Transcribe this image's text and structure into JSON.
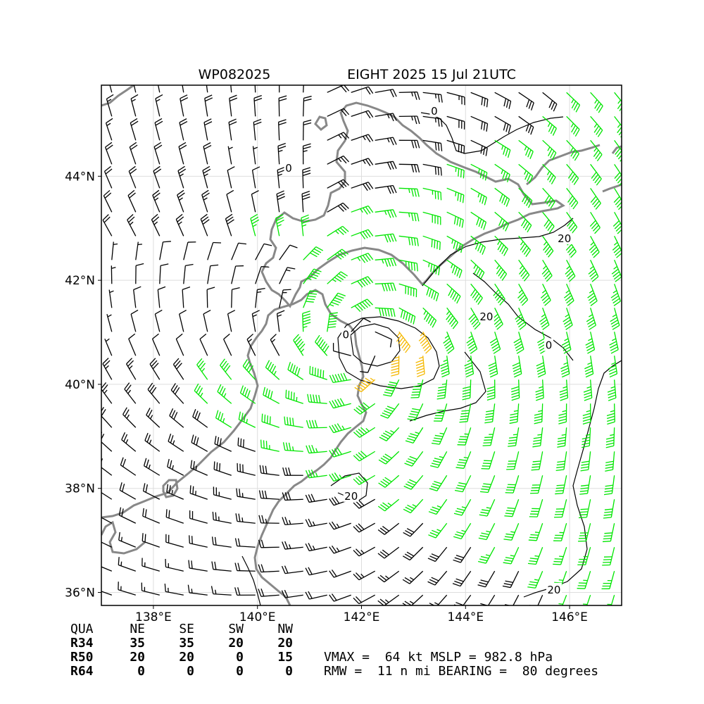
{
  "chart_data": {
    "type": "wind barb map",
    "title_left": "WP082025",
    "title_right": "EIGHT 2025 15 Jul 21UTC",
    "lon_range": [
      137.0,
      147.0
    ],
    "lat_range": [
      35.75,
      45.75
    ],
    "x_ticks": [
      {
        "value": 138,
        "label": "138°E"
      },
      {
        "value": 140,
        "label": "140°E"
      },
      {
        "value": 142,
        "label": "142°E"
      },
      {
        "value": 144,
        "label": "144°E"
      },
      {
        "value": 146,
        "label": "146°E"
      }
    ],
    "y_ticks": [
      {
        "value": 36,
        "label": "36°N"
      },
      {
        "value": 38,
        "label": "38°N"
      },
      {
        "value": 40,
        "label": "40°N"
      },
      {
        "value": 42,
        "label": "42°N"
      },
      {
        "value": 44,
        "label": "44°N"
      }
    ],
    "grid": true,
    "storm_center": {
      "lon": 142.0,
      "lat": 40.75
    },
    "contour_labels": [
      {
        "text": "0",
        "lon": 143.4,
        "lat": 45.25
      },
      {
        "text": "0",
        "lon": 140.6,
        "lat": 44.15
      },
      {
        "text": "20",
        "lon": 145.9,
        "lat": 42.8
      },
      {
        "text": "20",
        "lon": 144.4,
        "lat": 41.3
      },
      {
        "text": "0",
        "lon": 145.6,
        "lat": 40.75
      },
      {
        "text": "0",
        "lon": 141.7,
        "lat": 40.95
      },
      {
        "text": "20",
        "lon": 141.8,
        "lat": 37.85
      },
      {
        "text": "20",
        "lon": 145.7,
        "lat": 36.05
      }
    ],
    "wind_colors": {
      "below_34kt": "#000000",
      "34_to_63kt": "#00e600",
      "64kt_plus": "#f5b800"
    },
    "coastline_color": "#888888",
    "wind_radii_table": {
      "header": [
        "QUA",
        "NE",
        "SE",
        "SW",
        "NW"
      ],
      "rows": [
        {
          "label": "R34",
          "values": [
            "35",
            "35",
            "20",
            "20"
          ]
        },
        {
          "label": "R50",
          "values": [
            "20",
            "20",
            "0",
            "15"
          ]
        },
        {
          "label": "R64",
          "values": [
            "0",
            "0",
            "0",
            "0"
          ]
        }
      ]
    },
    "summary_line_1": "VMAX =  64 kt MSLP = 982.8 hPa",
    "summary_line_2": "RMW =  11 n mi BEARING =  80 degrees"
  }
}
